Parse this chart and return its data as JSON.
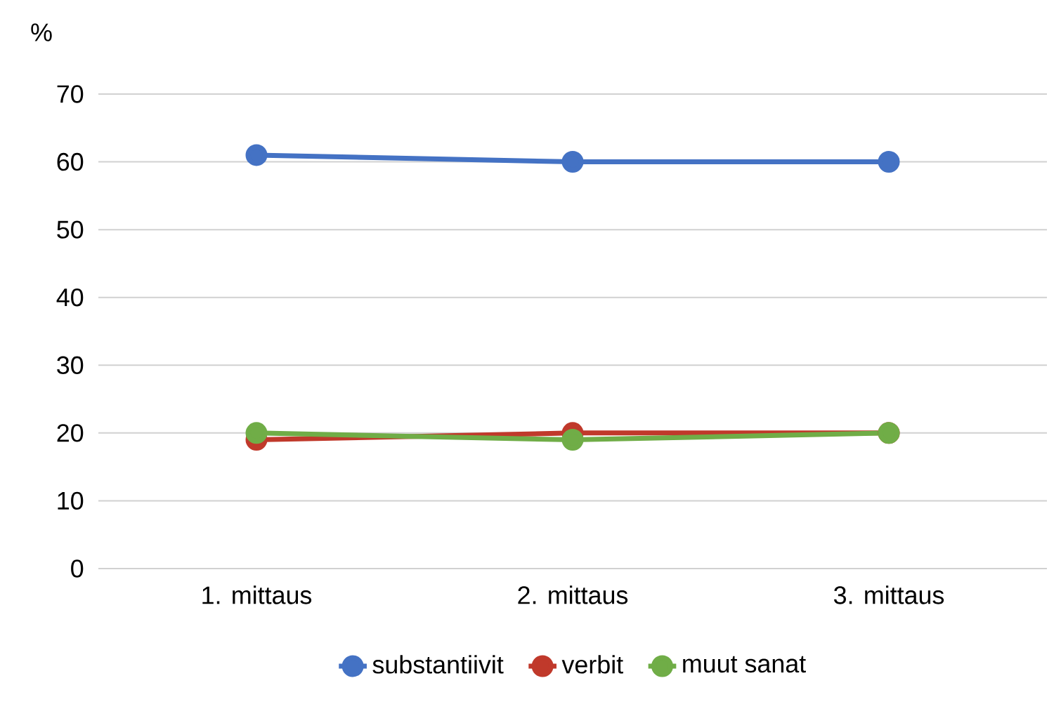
{
  "chart_data": {
    "type": "line",
    "ylabel": "%",
    "categories": [
      "1. mittaus",
      "2. mittaus",
      "3. mittaus"
    ],
    "series": [
      {
        "name": "substantiivit",
        "color": "#4472c4",
        "values": [
          61,
          60,
          60
        ]
      },
      {
        "name": "verbit",
        "color": "#c0392b",
        "values": [
          19,
          20,
          20
        ]
      },
      {
        "name": "muut sanat",
        "color": "#70ad47",
        "values": [
          20,
          19,
          20
        ]
      }
    ],
    "ylim": [
      0,
      70
    ],
    "yticks": [
      0,
      10,
      20,
      30,
      40,
      50,
      60,
      70
    ],
    "grid": "y",
    "legend": "bottom",
    "marker": "circle",
    "line_style": "solid"
  }
}
